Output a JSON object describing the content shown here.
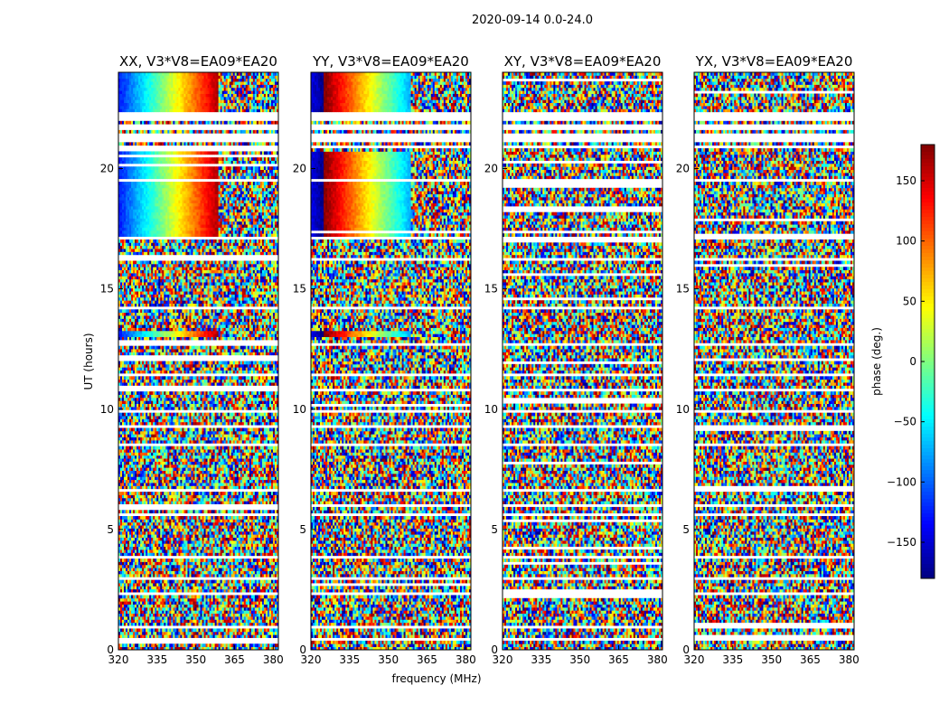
{
  "chart_data": {
    "type": "heatmap",
    "suptitle": "2020-09-14 0.0-24.0",
    "xlabel": "frequency (MHz)",
    "ylabel": "UT (hours)",
    "xlim": [
      320,
      382
    ],
    "ylim": [
      0,
      24
    ],
    "xticks": [
      320,
      335,
      350,
      365,
      380
    ],
    "yticks": [
      0,
      5,
      10,
      15,
      20
    ],
    "panels": [
      {
        "title": "XX, V3*V8=EA09*EA20",
        "pol": "XX"
      },
      {
        "title": "YY, V3*V8=EA09*EA20",
        "pol": "YY"
      },
      {
        "title": "XY, V3*V8=EA09*EA20",
        "pol": "XY"
      },
      {
        "title": "YX, V3*V8=EA09*EA20",
        "pol": "YX"
      }
    ],
    "colorbar": {
      "label": "phase (deg.)",
      "range": [
        -180,
        180
      ],
      "ticks": [
        150,
        100,
        50,
        0,
        -50,
        -100,
        -150
      ],
      "colormap": "jet"
    }
  }
}
